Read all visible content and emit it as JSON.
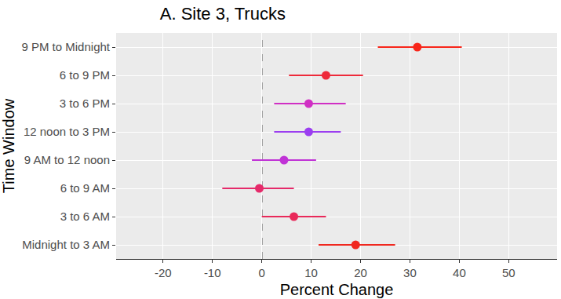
{
  "chart_data": {
    "type": "scatter",
    "title": "A. Site 3, Trucks",
    "x_label": "Percent Change",
    "y_label": "Time Window",
    "orientation": "horizontal",
    "categories": [
      "Midnight to 3 AM",
      "3 to 6 AM",
      "6 to 9 AM",
      "9 AM to 12 noon",
      "12 noon to 3 PM",
      "3 to 6 PM",
      "6 to 9 PM",
      "9 PM to Midnight"
    ],
    "values": [
      19,
      6.5,
      -0.5,
      4.5,
      9.5,
      9.5,
      13,
      31.5
    ],
    "lower": [
      11.5,
      0,
      -8,
      -2,
      2.5,
      2.5,
      5.5,
      23.5
    ],
    "upper": [
      27,
      13,
      6.5,
      11,
      16,
      17,
      20.5,
      40.5
    ],
    "colors": [
      "#f0281f",
      "#e9295a",
      "#e52a6a",
      "#c033d6",
      "#9b3ef0",
      "#d02fc4",
      "#ee2a3a",
      "#f8261a"
    ],
    "marker": "circle",
    "ref_line": 0,
    "xlim": [
      -29.5,
      59.8
    ],
    "xticks": [
      -20,
      -10,
      0,
      10,
      20,
      30,
      40,
      50
    ],
    "grid": true,
    "legend": "none"
  }
}
